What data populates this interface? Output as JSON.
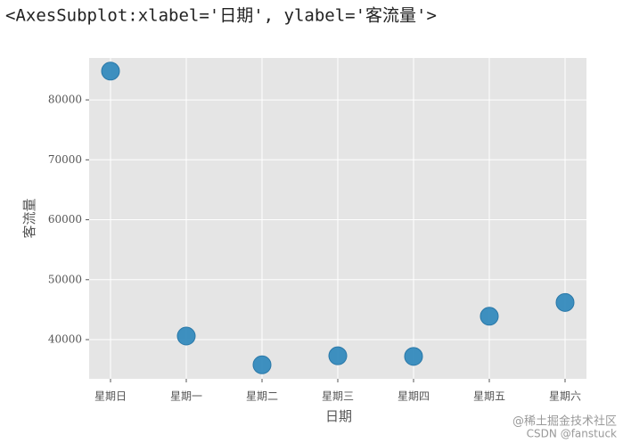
{
  "chart_data": {
    "type": "scatter",
    "output_text": "<AxesSubplot:xlabel='日期', ylabel='客流量'>",
    "xlabel": "日期",
    "ylabel": "客流量",
    "categories": [
      "星期日",
      "星期一",
      "星期二",
      "星期三",
      "星期四",
      "星期五",
      "星期六"
    ],
    "values": [
      84800,
      40600,
      35800,
      37300,
      37200,
      43900,
      46200
    ],
    "color": "#348ABD",
    "ylim": [
      33460,
      87000
    ],
    "yticks": [
      40000,
      50000,
      60000,
      70000,
      80000
    ],
    "grid": true,
    "watermarks": [
      "@稀土掘金技术社区",
      "CSDN @fanstuck"
    ]
  }
}
